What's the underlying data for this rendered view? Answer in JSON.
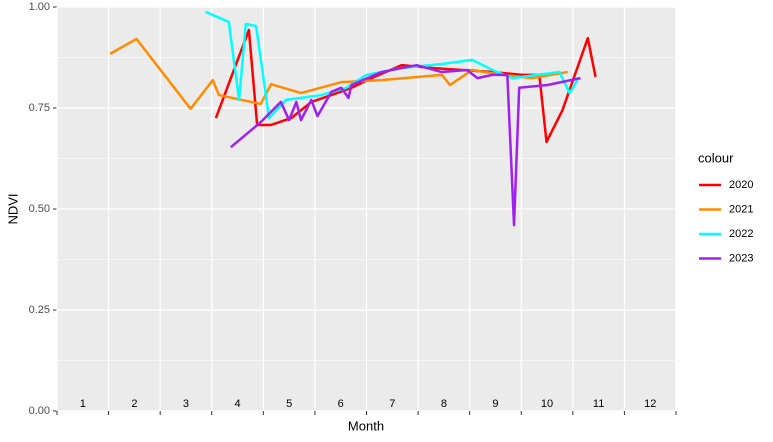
{
  "chart_data": {
    "type": "line",
    "x_label": "Month",
    "y_label": "NDVI",
    "legend_title": "colour",
    "xlim": [
      0.5,
      12.5
    ],
    "ylim": [
      0,
      1
    ],
    "xticks": [
      1,
      2,
      3,
      4,
      5,
      6,
      7,
      8,
      9,
      10,
      11,
      12
    ],
    "xgrid": [
      0.5,
      1.5,
      2.5,
      3.5,
      4.5,
      5.5,
      6.5,
      7.5,
      8.5,
      9.5,
      10.5,
      11.5,
      12.5
    ],
    "yticks": [
      {
        "value": 0,
        "label": "0.00"
      },
      {
        "value": 0.25,
        "label": "0.25"
      },
      {
        "value": 0.5,
        "label": "0.50"
      },
      {
        "value": 0.75,
        "label": "0.75"
      },
      {
        "value": 1,
        "label": "1.00"
      }
    ],
    "yminor": [
      0.125,
      0.375,
      0.625,
      0.875
    ],
    "grid": true,
    "legend": "right",
    "series": [
      {
        "name": "2020",
        "color": "#ff0000",
        "x": [
          3.58,
          4.22,
          4.38,
          4.65,
          5.04,
          5.43,
          5.82,
          6.21,
          6.6,
          7.18,
          7.77,
          8.35,
          8.94,
          9.52,
          9.85,
          9.99,
          10.3,
          10.79,
          10.94
        ],
        "values": [
          0.725,
          0.943,
          0.708,
          0.708,
          0.725,
          0.765,
          0.782,
          0.8,
          0.824,
          0.856,
          0.849,
          0.844,
          0.839,
          0.832,
          0.832,
          0.666,
          0.745,
          0.923,
          0.827
        ]
      },
      {
        "name": "2021",
        "color": "#ff8c00",
        "x": [
          1.53,
          2.04,
          3.09,
          3.52,
          3.64,
          4.45,
          4.65,
          5.23,
          6.01,
          6.79,
          7.96,
          8.12,
          8.55,
          9.13,
          9.71,
          10.4
        ],
        "values": [
          0.884,
          0.921,
          0.748,
          0.819,
          0.782,
          0.76,
          0.809,
          0.787,
          0.814,
          0.819,
          0.832,
          0.807,
          0.844,
          0.832,
          0.824,
          0.839
        ]
      },
      {
        "name": "2022",
        "color": "#00ffff",
        "x": [
          3.38,
          3.83,
          4.03,
          4.16,
          4.36,
          4.61,
          4.94,
          5.23,
          5.62,
          6.11,
          6.5,
          7.18,
          7.96,
          8.55,
          8.94,
          9.33,
          9.81,
          10.24,
          10.44,
          10.59
        ],
        "values": [
          0.988,
          0.963,
          0.77,
          0.958,
          0.953,
          0.725,
          0.77,
          0.775,
          0.782,
          0.8,
          0.832,
          0.849,
          0.859,
          0.869,
          0.844,
          0.824,
          0.832,
          0.839,
          0.787,
          0.819
        ]
      },
      {
        "name": "2023",
        "color": "#a020f0",
        "x": [
          3.87,
          4.45,
          4.84,
          5.0,
          5.14,
          5.23,
          5.43,
          5.55,
          5.82,
          6.01,
          6.15,
          6.21,
          6.79,
          7.47,
          7.96,
          8.45,
          8.65,
          8.94,
          9.23,
          9.36,
          9.46,
          10.01,
          10.65
        ],
        "values": [
          0.653,
          0.715,
          0.765,
          0.72,
          0.765,
          0.72,
          0.77,
          0.73,
          0.79,
          0.8,
          0.775,
          0.807,
          0.839,
          0.856,
          0.839,
          0.844,
          0.824,
          0.832,
          0.832,
          0.46,
          0.8,
          0.807,
          0.824
        ]
      }
    ]
  }
}
